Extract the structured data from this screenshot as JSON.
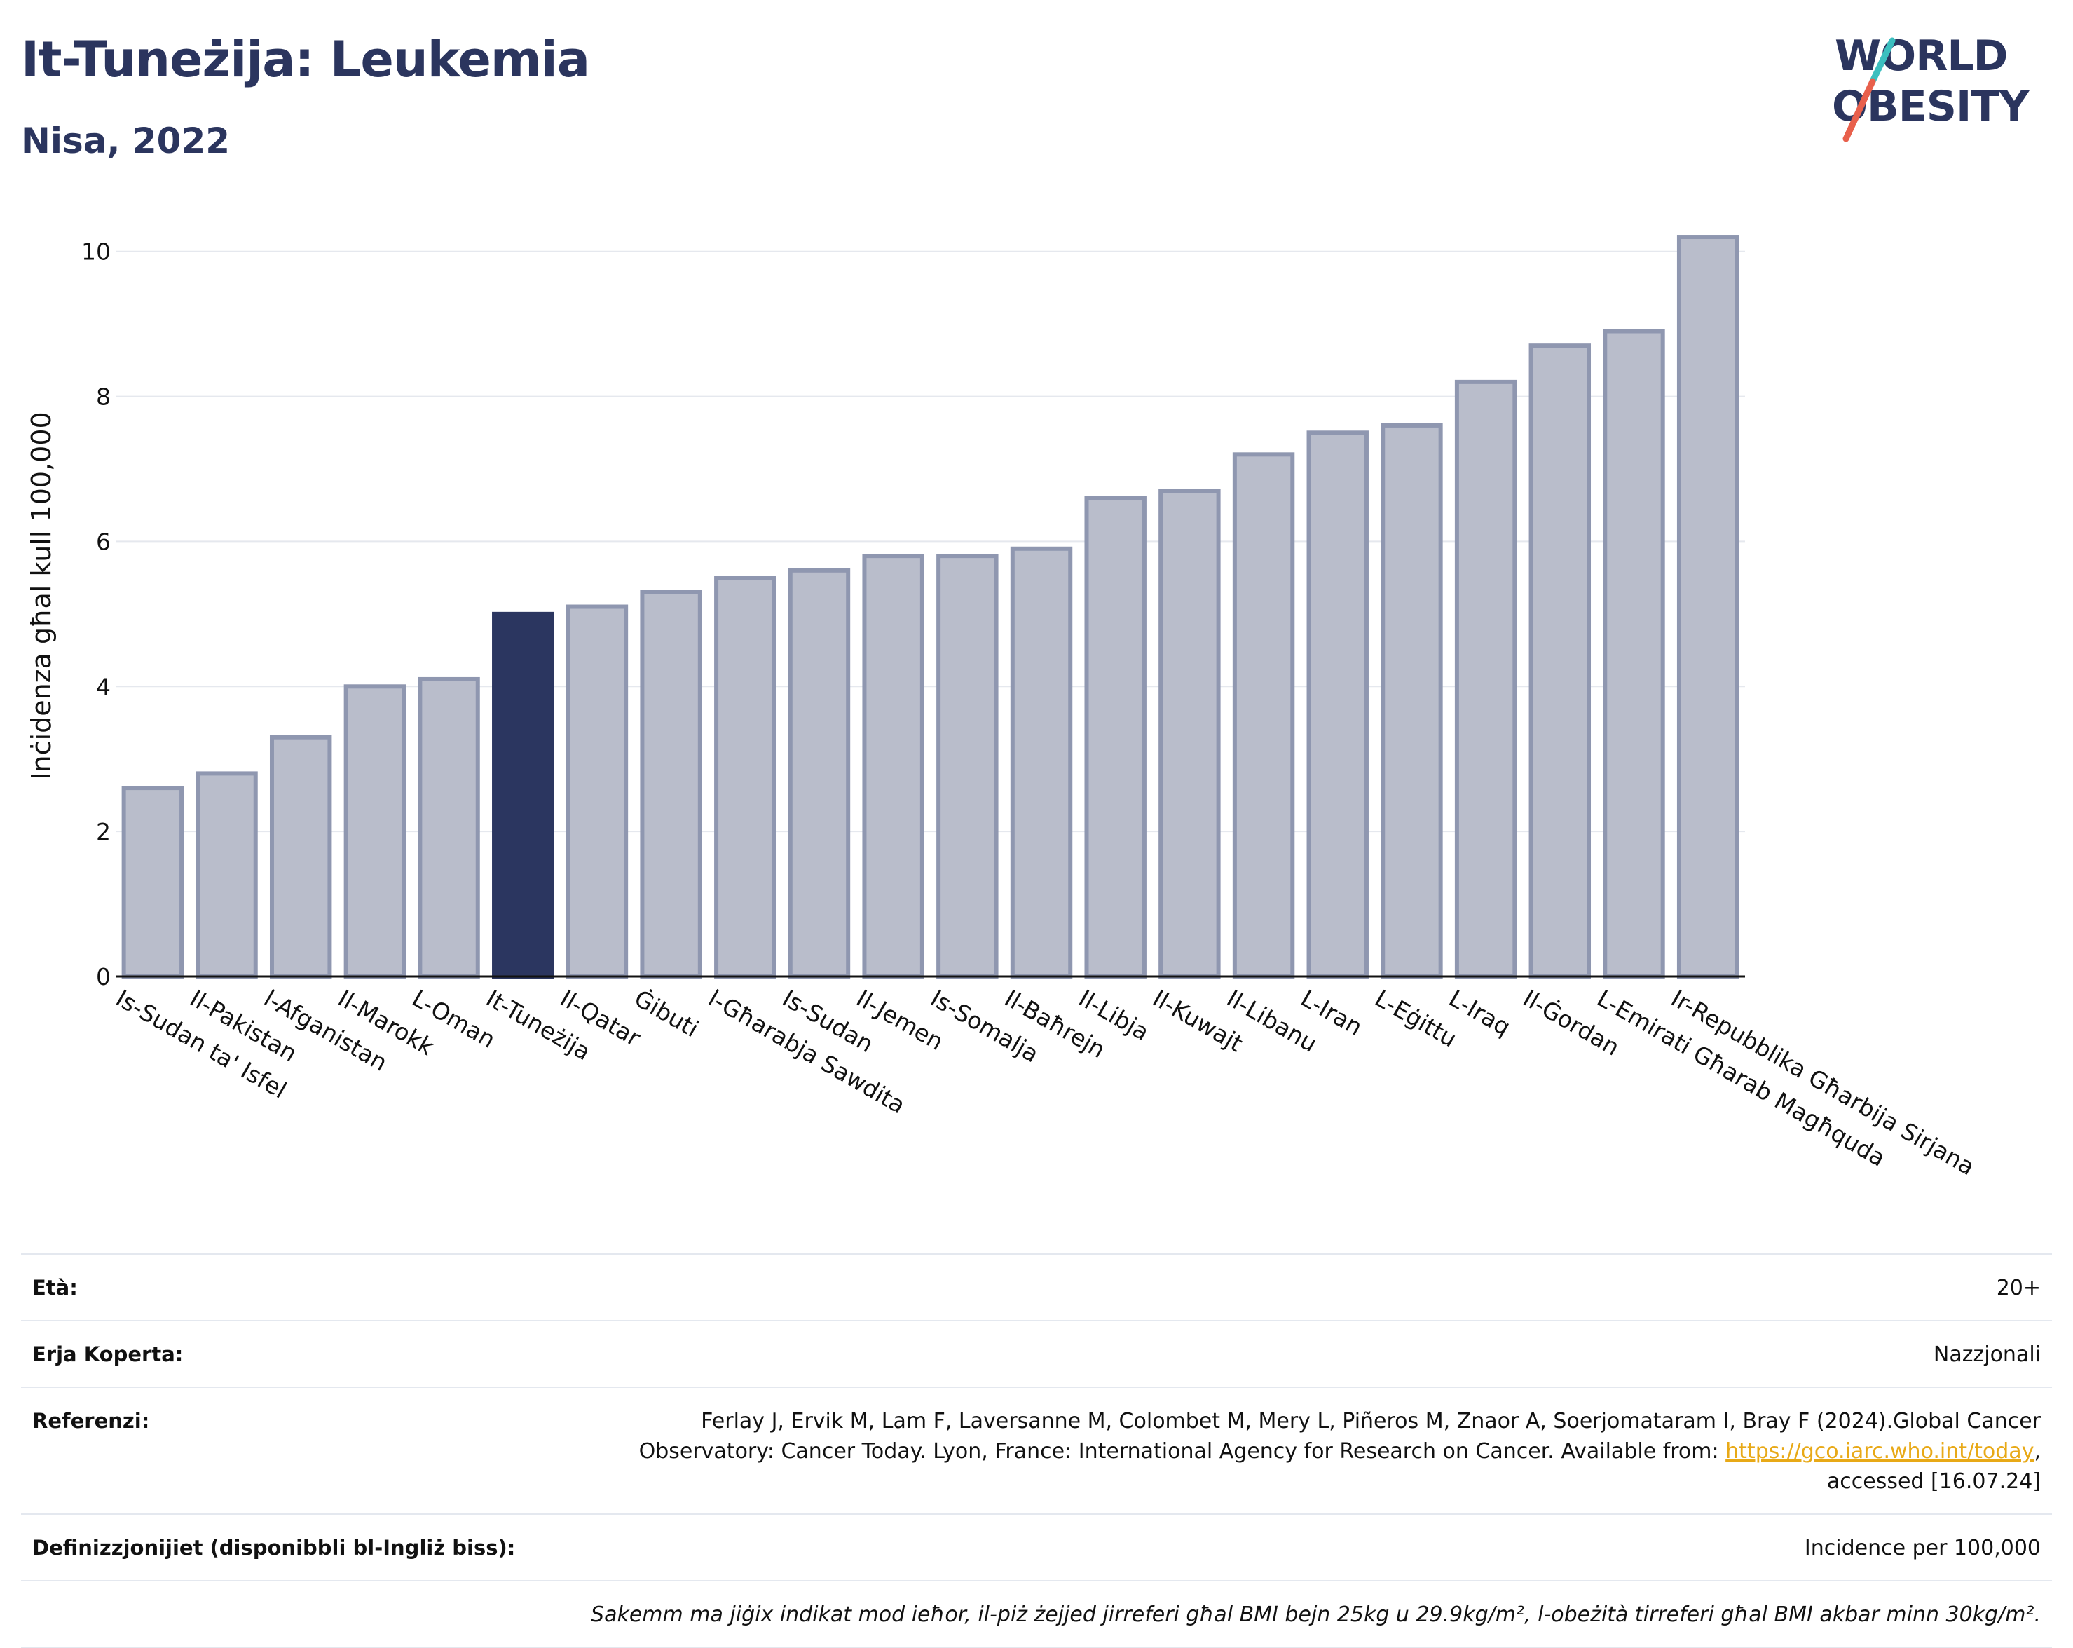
{
  "header": {
    "title": "It-Tuneżija: Leukemia",
    "subtitle": "Nisa, 2022"
  },
  "logo": {
    "line1": "WORLD",
    "line2": "OBESITY",
    "colors": {
      "text": "#2b355e",
      "slash_teal": "#3cbfbf",
      "slash_red": "#e8604c"
    }
  },
  "chart_data": {
    "type": "bar",
    "title": "It-Tuneżija: Leukemia",
    "subtitle": "Nisa, 2022",
    "xlabel": "",
    "ylabel": "Inċidenza għal kull 100,000",
    "ylim": [
      0,
      10.5
    ],
    "yticks": [
      0,
      2,
      4,
      6,
      8,
      10
    ],
    "grid": true,
    "legend": "none",
    "highlight_category": "It-Tuneżija",
    "colors": {
      "bar": "#b9bdcb",
      "bar_border": "#8f97b0",
      "highlight": "#2b3660",
      "grid": "#e5e8ee",
      "axis": "#111111"
    },
    "categories": [
      "Is-Sudan ta' Isfel",
      "Il-Pakistan",
      "l-Afganistan",
      "Il-Marokk",
      "L-Oman",
      "It-Tuneżija",
      "Il-Qatar",
      "Ġibuti",
      "l-Għarabja Sawdita",
      "Is-Sudan",
      "Il-Jemen",
      "Is-Somalja",
      "Il-Baħrejn",
      "Il-Libja",
      "Il-Kuwajt",
      "Il-Libanu",
      "L-Iran",
      "L-Eġittu",
      "L-Iraq",
      "Il-Ġordan",
      "L-Emirati Għarab Magħquda",
      "Ir-Repubblika Għarbija Sirjana"
    ],
    "values": [
      2.6,
      2.8,
      3.3,
      4.0,
      4.1,
      5.0,
      5.1,
      5.3,
      5.5,
      5.6,
      5.8,
      5.8,
      5.9,
      6.6,
      6.7,
      7.2,
      7.5,
      7.6,
      8.2,
      8.7,
      8.9,
      10.2
    ]
  },
  "info": {
    "age_label": "Età:",
    "age_value": "20+",
    "area_label": "Erja Koperta:",
    "area_value": "Nazzjonali",
    "ref_label": "Referenzi:",
    "ref_text_1": "Ferlay J, Ervik M, Lam F, Laversanne M, Colombet M, Mery L, Piñeros M, Znaor A, Soerjomataram I, Bray F (2024).Global Cancer",
    "ref_text_2": "Observatory: Cancer Today. Lyon, France: International Agency for Research on Cancer. Available from:",
    "ref_link": "https://gco.iarc.who.int/today",
    "ref_text_3": ",",
    "ref_text_4": "accessed [16.07.24]",
    "def_label": "Definizzjonijiet (disponibbli bl-Ingliż biss):",
    "def_value": "Incidence per 100,000",
    "note": "Sakemm ma jiġix indikat mod ieħor, il-piż żejjed jirreferi għal BMI bejn 25kg u 29.9kg/m², l-obeżità tirreferi għal BMI akbar minn 30kg/m²."
  }
}
